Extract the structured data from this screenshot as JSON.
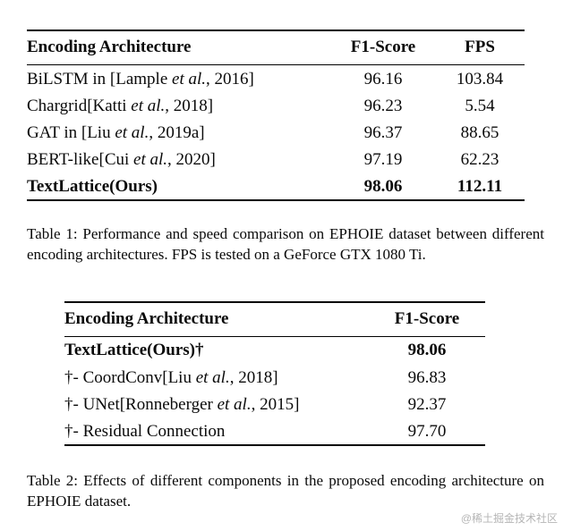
{
  "table1": {
    "headers": [
      "Encoding Architecture",
      "F1-Score",
      "FPS"
    ],
    "rows": [
      {
        "label": [
          "BiLSTM in [Lample ",
          "et al.",
          ", 2016]"
        ],
        "f1": "96.16",
        "fps": "103.84"
      },
      {
        "label": [
          "Chargrid[Katti ",
          "et al.",
          ", 2018]"
        ],
        "f1": "96.23",
        "fps": "5.54"
      },
      {
        "label": [
          "GAT in [Liu ",
          "et al.",
          ", 2019a]"
        ],
        "f1": "96.37",
        "fps": "88.65"
      },
      {
        "label": [
          "BERT-like[Cui ",
          "et al.",
          ", 2020]"
        ],
        "f1": "97.19",
        "fps": "62.23"
      },
      {
        "label": [
          "TextLattice(Ours)"
        ],
        "f1": "98.06",
        "fps": "112.11"
      }
    ],
    "caption": "Table 1: Performance and speed comparison on EPHOIE dataset between different encoding architectures. FPS is tested on a GeForce GTX 1080 Ti."
  },
  "table2": {
    "headers": [
      "Encoding Architecture",
      "F1-Score"
    ],
    "rows": [
      {
        "label": [
          "TextLattice(Ours)†"
        ],
        "f1": "98.06"
      },
      {
        "label": [
          "†- CoordConv[Liu ",
          "et al.",
          ", 2018]"
        ],
        "f1": "96.83"
      },
      {
        "label": [
          "†- UNet[Ronneberger ",
          "et al.",
          ", 2015]"
        ],
        "f1": "92.37"
      },
      {
        "label": [
          "†- Residual Connection"
        ],
        "f1": "97.70"
      }
    ],
    "caption": "Table 2: Effects of different components in the proposed encoding architecture on EPHOIE dataset."
  },
  "watermark": "@稀土掘金技术社区"
}
